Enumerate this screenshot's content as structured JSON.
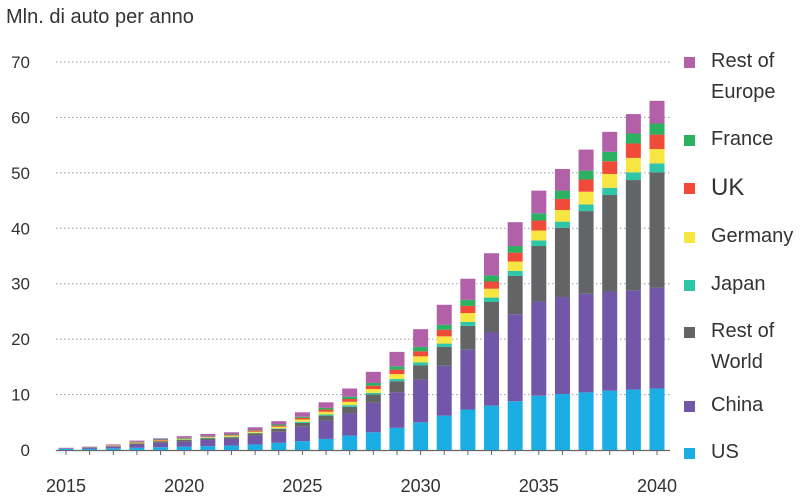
{
  "chart_data": {
    "type": "bar",
    "stacked": true,
    "title": "",
    "ylabel": "Mln. di auto per anno",
    "xlabel": "",
    "ylim": [
      0,
      70
    ],
    "yticks": [
      0,
      10,
      20,
      30,
      40,
      50,
      60,
      70
    ],
    "xtick_labels": [
      "2015",
      "2020",
      "2025",
      "2030",
      "2035",
      "2040"
    ],
    "grid": "horizontal dotted",
    "legend_position": "right",
    "categories": [
      "2015",
      "2016",
      "2017",
      "2018",
      "2019",
      "2020",
      "2021",
      "2022",
      "2023",
      "2024",
      "2025",
      "2026",
      "2027",
      "2028",
      "2029",
      "2030",
      "2031",
      "2032",
      "2033",
      "2034",
      "2035",
      "2036",
      "2037",
      "2038",
      "2039",
      "2040"
    ],
    "series": [
      {
        "name": "US",
        "color": "#1aaee5",
        "values": [
          0.2,
          0.2,
          0.3,
          0.4,
          0.5,
          0.6,
          0.7,
          0.8,
          1.0,
          1.3,
          1.6,
          2.0,
          2.6,
          3.2,
          4.0,
          5.0,
          6.2,
          7.3,
          8.0,
          8.8,
          9.8,
          10.1,
          10.4,
          10.7,
          10.9,
          11.1
        ]
      },
      {
        "name": "China",
        "color": "#7256a8",
        "values": [
          0.1,
          0.2,
          0.3,
          0.6,
          0.8,
          0.9,
          1.1,
          1.2,
          1.6,
          2.0,
          2.6,
          3.3,
          4.0,
          5.3,
          6.4,
          7.7,
          9.0,
          10.8,
          13.2,
          15.7,
          17.0,
          17.5,
          17.8,
          17.9,
          17.9,
          18.2
        ]
      },
      {
        "name": "Rest of World",
        "color": "#636466",
        "values": [
          0.0,
          0.1,
          0.1,
          0.2,
          0.3,
          0.3,
          0.3,
          0.3,
          0.4,
          0.5,
          0.7,
          0.9,
          1.2,
          1.5,
          2.0,
          2.6,
          3.4,
          4.3,
          5.5,
          6.9,
          10.0,
          12.5,
          14.9,
          17.4,
          19.9,
          20.8
        ]
      },
      {
        "name": "Japan",
        "color": "#2fc5a8",
        "values": [
          0.0,
          0.0,
          0.0,
          0.0,
          0.0,
          0.1,
          0.1,
          0.1,
          0.1,
          0.1,
          0.2,
          0.2,
          0.3,
          0.3,
          0.4,
          0.5,
          0.6,
          0.7,
          0.8,
          0.9,
          1.0,
          1.1,
          1.2,
          1.3,
          1.4,
          1.6
        ]
      },
      {
        "name": "Germany",
        "color": "#f7e542",
        "values": [
          0.0,
          0.0,
          0.1,
          0.1,
          0.1,
          0.1,
          0.1,
          0.2,
          0.2,
          0.3,
          0.4,
          0.5,
          0.6,
          0.7,
          0.9,
          1.1,
          1.3,
          1.6,
          1.6,
          1.7,
          1.8,
          2.1,
          2.3,
          2.5,
          2.6,
          2.6
        ]
      },
      {
        "name": "UK",
        "color": "#f04a3a",
        "values": [
          0.0,
          0.0,
          0.0,
          0.1,
          0.1,
          0.1,
          0.1,
          0.1,
          0.2,
          0.2,
          0.3,
          0.4,
          0.5,
          0.6,
          0.8,
          0.9,
          1.2,
          1.3,
          1.3,
          1.6,
          1.8,
          2.0,
          2.2,
          2.3,
          2.6,
          2.6
        ]
      },
      {
        "name": "France",
        "color": "#2cb062",
        "values": [
          0.0,
          0.0,
          0.0,
          0.1,
          0.1,
          0.1,
          0.1,
          0.1,
          0.1,
          0.2,
          0.2,
          0.3,
          0.4,
          0.5,
          0.6,
          0.8,
          0.9,
          1.1,
          1.1,
          1.2,
          1.3,
          1.5,
          1.6,
          1.7,
          1.8,
          2.0
        ]
      },
      {
        "name": "Rest of Europe",
        "color": "#b260a8",
        "values": [
          0.1,
          0.1,
          0.2,
          0.2,
          0.2,
          0.3,
          0.4,
          0.4,
          0.5,
          0.6,
          0.8,
          1.0,
          1.5,
          2.0,
          2.6,
          3.2,
          3.6,
          3.8,
          4.0,
          4.3,
          4.1,
          3.9,
          3.8,
          3.6,
          3.5,
          4.1
        ]
      }
    ]
  },
  "legend": [
    {
      "label": "Rest of\nEurope",
      "color": "#b260a8"
    },
    {
      "label": "France",
      "color": "#2cb062"
    },
    {
      "label": "UK",
      "color": "#f04a3a"
    },
    {
      "label": "Germany",
      "color": "#f7e542"
    },
    {
      "label": "Japan",
      "color": "#2fc5a8"
    },
    {
      "label": "Rest of\nWorld",
      "color": "#636466"
    },
    {
      "label": "China",
      "color": "#7256a8"
    },
    {
      "label": "US",
      "color": "#1aaee5"
    }
  ]
}
